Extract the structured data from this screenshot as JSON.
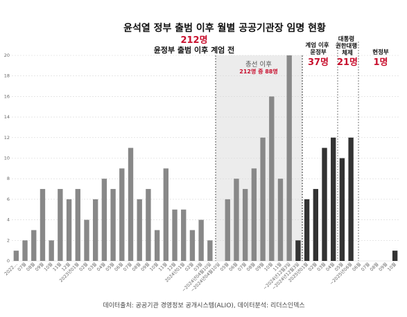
{
  "chart_data": {
    "type": "bar",
    "title": "윤석열 정부 출범 이후 월별 공공기관장 임명 현황",
    "ylim": [
      0,
      20
    ],
    "yticks": [
      0,
      2,
      4,
      6,
      8,
      10,
      12,
      14,
      16,
      18,
      20
    ],
    "grid": true,
    "categories": [
      "2022…",
      "07월",
      "08월",
      "09월",
      "10월",
      "11월",
      "12월",
      "2023년01월",
      "02월",
      "03월",
      "04월",
      "05월",
      "06월",
      "07월",
      "08월",
      "09월",
      "10월",
      "11월",
      "12월",
      "2024년01월",
      "02월",
      "03월",
      "~2024년04월10일",
      "~2024년04월10일",
      "05월",
      "06월",
      "07월",
      "08월",
      "09월",
      "10월",
      "11월",
      "~2024년12월3일",
      "~2024년12월3일",
      "2025년01월",
      "02월",
      "03월",
      "04월",
      "05월",
      "~2025년06월",
      "06월",
      "07월",
      "08월",
      "09월",
      "10월"
    ],
    "values": [
      1,
      2,
      3,
      7,
      2,
      7,
      6,
      7,
      4,
      6,
      8,
      7,
      9,
      11,
      6,
      7,
      3,
      9,
      5,
      5,
      3,
      4,
      2,
      0,
      6,
      8,
      7,
      9,
      12,
      16,
      8,
      20,
      2,
      6,
      7,
      11,
      12,
      10,
      12,
      0,
      0,
      0,
      0,
      1
    ],
    "regions": [
      {
        "name": "윤정부 출범 이후 계엄 전",
        "count": "212명",
        "from": 0,
        "to": 32,
        "color": "#888888"
      },
      {
        "name": "계엄 이후 윤정부",
        "count": "37명",
        "from": 32,
        "to": 37,
        "color": "#333333"
      },
      {
        "name": "대통령 권한대행 체제",
        "count": "21명",
        "from": 37,
        "to": 39,
        "color": "#333333"
      },
      {
        "name": "현정부",
        "count": "1명",
        "from": 39,
        "to": 44,
        "color": "#333333"
      }
    ],
    "annotation": {
      "title": "총선 이후",
      "detail": "212명 중 88명"
    },
    "source": "데이터출처: 공공기관 경영정보 공개시스템(ALIO), 데이터분석: 리더스인덱스"
  }
}
